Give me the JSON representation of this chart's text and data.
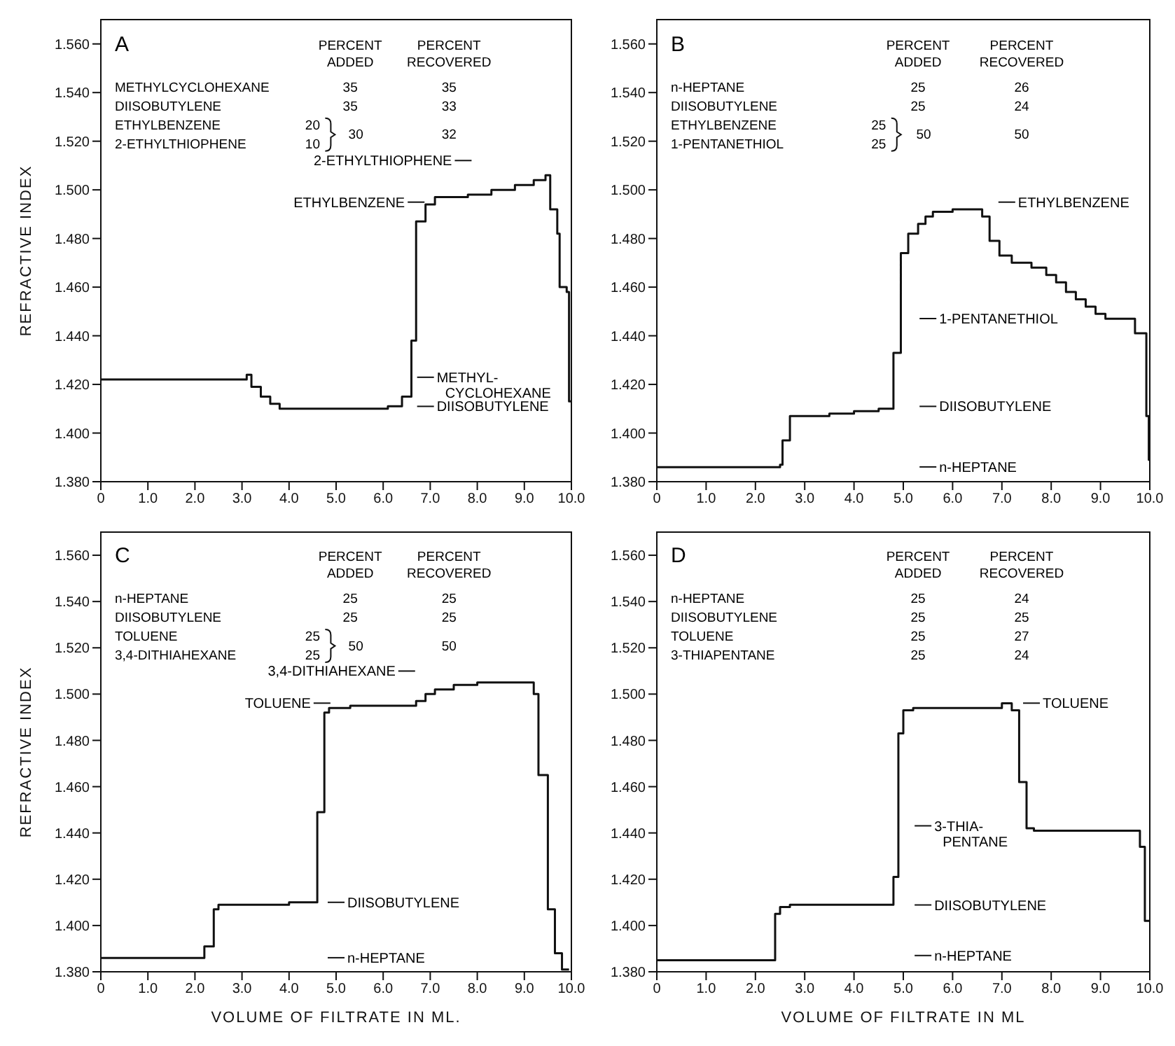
{
  "chart_data": [
    {
      "type": "step",
      "title": "A",
      "ylabel": "REFRACTIVE INDEX",
      "color": "#111111",
      "x": [
        0,
        3.1,
        3.2,
        3.4,
        3.6,
        3.8,
        6.1,
        6.4,
        6.6,
        6.7,
        6.9,
        7.1,
        7.3,
        7.8,
        8.3,
        8.8,
        9.2,
        9.45,
        9.55,
        9.7,
        9.75,
        9.9,
        9.95,
        10
      ],
      "values": [
        1.422,
        1.424,
        1.419,
        1.415,
        1.412,
        1.41,
        1.411,
        1.415,
        1.438,
        1.487,
        1.494,
        1.497,
        1.497,
        1.498,
        1.5,
        1.502,
        1.504,
        1.506,
        1.492,
        1.482,
        1.46,
        1.458,
        1.413,
        1.413
      ],
      "xlim": [
        0,
        10
      ],
      "ylim": [
        1.38,
        1.57
      ],
      "xticks": [
        {
          "value": 0,
          "label": "0"
        },
        {
          "value": 1,
          "label": "1.0"
        },
        {
          "value": 2,
          "label": "2.0"
        },
        {
          "value": 3,
          "label": "3.0"
        },
        {
          "value": 4,
          "label": "4.0"
        },
        {
          "value": 5,
          "label": "5.0"
        },
        {
          "value": 6,
          "label": "6.0"
        },
        {
          "value": 7,
          "label": "7.0"
        },
        {
          "value": 8,
          "label": "8.0"
        },
        {
          "value": 9,
          "label": "9.0"
        },
        {
          "value": 10,
          "label": "10.0"
        }
      ],
      "yticks": [
        {
          "value": 1.38,
          "label": "1.380"
        },
        {
          "value": 1.4,
          "label": "1.400"
        },
        {
          "value": 1.42,
          "label": "1.420"
        },
        {
          "value": 1.44,
          "label": "1.440"
        },
        {
          "value": 1.46,
          "label": "1.460"
        },
        {
          "value": 1.48,
          "label": "1.480"
        },
        {
          "value": 1.5,
          "label": "1.500"
        },
        {
          "value": 1.52,
          "label": "1.520"
        },
        {
          "value": 1.54,
          "label": "1.540"
        },
        {
          "value": 1.56,
          "label": "1.560"
        }
      ],
      "annotations": [
        "PERCENT ADDED",
        "PERCENT RECOVERED",
        "METHYLCYCLOHEXANE",
        "35",
        "35",
        "DIISOBUTYLENE",
        "35",
        "33",
        "ETHYLBENZENE",
        "20",
        "2-ETHYLTHIOPHENE",
        "10",
        "30",
        "32",
        "2-ETHYLTHIOPHENE",
        "ETHYLBENZENE",
        "METHYL- CYCLOHEXANE",
        "DIISOBUTYLENE"
      ]
    },
    {
      "type": "step",
      "title": "B",
      "color": "#111111",
      "x": [
        0,
        2.5,
        2.55,
        2.7,
        3.0,
        3.5,
        4.0,
        4.5,
        4.8,
        4.95,
        5.1,
        5.3,
        5.45,
        5.6,
        6.0,
        6.6,
        6.75,
        6.95,
        7.2,
        7.6,
        7.9,
        8.1,
        8.3,
        8.5,
        8.7,
        8.9,
        9.1,
        9.7,
        9.93,
        9.98,
        10
      ],
      "values": [
        1.386,
        1.387,
        1.397,
        1.407,
        1.407,
        1.408,
        1.409,
        1.41,
        1.433,
        1.474,
        1.482,
        1.486,
        1.489,
        1.491,
        1.492,
        1.489,
        1.479,
        1.473,
        1.47,
        1.468,
        1.465,
        1.462,
        1.458,
        1.455,
        1.452,
        1.449,
        1.447,
        1.441,
        1.407,
        1.389,
        1.389
      ],
      "xlim": [
        0,
        10
      ],
      "ylim": [
        1.38,
        1.57
      ],
      "xticks": [
        {
          "value": 0,
          "label": "0"
        },
        {
          "value": 1,
          "label": "1.0"
        },
        {
          "value": 2,
          "label": "2.0"
        },
        {
          "value": 3,
          "label": "3.0"
        },
        {
          "value": 4,
          "label": "4.0"
        },
        {
          "value": 5,
          "label": "5.0"
        },
        {
          "value": 6,
          "label": "6.0"
        },
        {
          "value": 7,
          "label": "7.0"
        },
        {
          "value": 8,
          "label": "8.0"
        },
        {
          "value": 9,
          "label": "9.0"
        },
        {
          "value": 10,
          "label": "10.0"
        }
      ],
      "yticks": [
        {
          "value": 1.38,
          "label": "1.380"
        },
        {
          "value": 1.4,
          "label": "1.400"
        },
        {
          "value": 1.42,
          "label": "1.420"
        },
        {
          "value": 1.44,
          "label": "1.440"
        },
        {
          "value": 1.46,
          "label": "1.460"
        },
        {
          "value": 1.48,
          "label": "1.480"
        },
        {
          "value": 1.5,
          "label": "1.500"
        },
        {
          "value": 1.52,
          "label": "1.520"
        },
        {
          "value": 1.54,
          "label": "1.540"
        },
        {
          "value": 1.56,
          "label": "1.560"
        }
      ],
      "annotations": [
        "PERCENT ADDED",
        "PERCENT RECOVERED",
        "n-HEPTANE",
        "25",
        "26",
        "DIISOBUTYLENE",
        "25",
        "24",
        "ETHYLBENZENE",
        "25",
        "1-PENTANETHIOL",
        "25",
        "50",
        "50",
        "ETHYLBENZENE",
        "1-PENTANETHIOL",
        "DIISOBUTYLENE",
        "n-HEPTANE"
      ]
    },
    {
      "type": "step",
      "title": "C",
      "xlabel": "VOLUME OF FILTRATE IN ML.",
      "ylabel": "REFRACTIVE INDEX",
      "color": "#111111",
      "x": [
        0,
        2.2,
        2.4,
        2.5,
        4.0,
        4.6,
        4.75,
        4.85,
        4.9,
        5.3,
        6.7,
        6.9,
        7.1,
        7.5,
        8.0,
        9.2,
        9.3,
        9.5,
        9.65,
        9.8,
        9.95
      ],
      "values": [
        1.386,
        1.391,
        1.407,
        1.409,
        1.41,
        1.449,
        1.492,
        1.494,
        1.494,
        1.495,
        1.497,
        1.5,
        1.502,
        1.504,
        1.505,
        1.5,
        1.465,
        1.407,
        1.388,
        1.381,
        1.381
      ],
      "xlim": [
        0,
        10
      ],
      "ylim": [
        1.38,
        1.57
      ],
      "xticks": [
        {
          "value": 0,
          "label": "0"
        },
        {
          "value": 1,
          "label": "1.0"
        },
        {
          "value": 2,
          "label": "2.0"
        },
        {
          "value": 3,
          "label": "3.0"
        },
        {
          "value": 4,
          "label": "4.0"
        },
        {
          "value": 5,
          "label": "5.0"
        },
        {
          "value": 6,
          "label": "6.0"
        },
        {
          "value": 7,
          "label": "7.0"
        },
        {
          "value": 8,
          "label": "8.0"
        },
        {
          "value": 9,
          "label": "9.0"
        },
        {
          "value": 10,
          "label": "10.0"
        }
      ],
      "yticks": [
        {
          "value": 1.38,
          "label": "1.380"
        },
        {
          "value": 1.4,
          "label": "1.400"
        },
        {
          "value": 1.42,
          "label": "1.420"
        },
        {
          "value": 1.44,
          "label": "1.440"
        },
        {
          "value": 1.46,
          "label": "1.460"
        },
        {
          "value": 1.48,
          "label": "1.480"
        },
        {
          "value": 1.5,
          "label": "1.500"
        },
        {
          "value": 1.52,
          "label": "1.520"
        },
        {
          "value": 1.54,
          "label": "1.540"
        },
        {
          "value": 1.56,
          "label": "1.560"
        }
      ],
      "annotations": [
        "PERCENT ADDED",
        "PERCENT RECOVERED",
        "n-HEPTANE",
        "25",
        "25",
        "DIISOBUTYLENE",
        "25",
        "25",
        "TOLUENE",
        "25",
        "3,4-DITHIAHEXANE",
        "25",
        "50",
        "50",
        "3,4-DITHIAHEXANE",
        "TOLUENE",
        "DIISOBUTYLENE",
        "n-HEPTANE"
      ]
    },
    {
      "type": "step",
      "title": "D",
      "xlabel": "VOLUME OF FILTRATE IN ML",
      "color": "#111111",
      "x": [
        0,
        2.4,
        2.5,
        2.7,
        4.8,
        4.9,
        5.0,
        5.2,
        7.0,
        7.2,
        7.35,
        7.5,
        7.65,
        9.8,
        9.9,
        10
      ],
      "values": [
        1.385,
        1.405,
        1.408,
        1.409,
        1.421,
        1.483,
        1.493,
        1.494,
        1.496,
        1.493,
        1.462,
        1.442,
        1.441,
        1.434,
        1.402,
        1.402
      ],
      "xlim": [
        0,
        10
      ],
      "ylim": [
        1.38,
        1.57
      ],
      "xticks": [
        {
          "value": 0,
          "label": "0"
        },
        {
          "value": 1,
          "label": "1.0"
        },
        {
          "value": 2,
          "label": "2.0"
        },
        {
          "value": 3,
          "label": "3.0"
        },
        {
          "value": 4,
          "label": "4.0"
        },
        {
          "value": 5,
          "label": "5.0"
        },
        {
          "value": 6,
          "label": "6.0"
        },
        {
          "value": 7,
          "label": "7.0"
        },
        {
          "value": 8,
          "label": "8.0"
        },
        {
          "value": 9,
          "label": "9.0"
        },
        {
          "value": 10,
          "label": "10.0"
        }
      ],
      "yticks": [
        {
          "value": 1.38,
          "label": "1.380"
        },
        {
          "value": 1.4,
          "label": "1.400"
        },
        {
          "value": 1.42,
          "label": "1.420"
        },
        {
          "value": 1.44,
          "label": "1.440"
        },
        {
          "value": 1.46,
          "label": "1.460"
        },
        {
          "value": 1.48,
          "label": "1.480"
        },
        {
          "value": 1.5,
          "label": "1.500"
        },
        {
          "value": 1.52,
          "label": "1.520"
        },
        {
          "value": 1.54,
          "label": "1.540"
        },
        {
          "value": 1.56,
          "label": "1.560"
        }
      ],
      "annotations": [
        "PERCENT ADDED",
        "PERCENT RECOVERED",
        "n-HEPTANE",
        "25",
        "24",
        "DIISOBUTYLENE",
        "25",
        "25",
        "TOLUENE",
        "25",
        "27",
        "3-THIAPENTANE",
        "25",
        "24",
        "TOLUENE",
        "3-THIA- PENTANE",
        "DIISOBUTYLENE",
        "n-HEPTANE"
      ]
    }
  ]
}
